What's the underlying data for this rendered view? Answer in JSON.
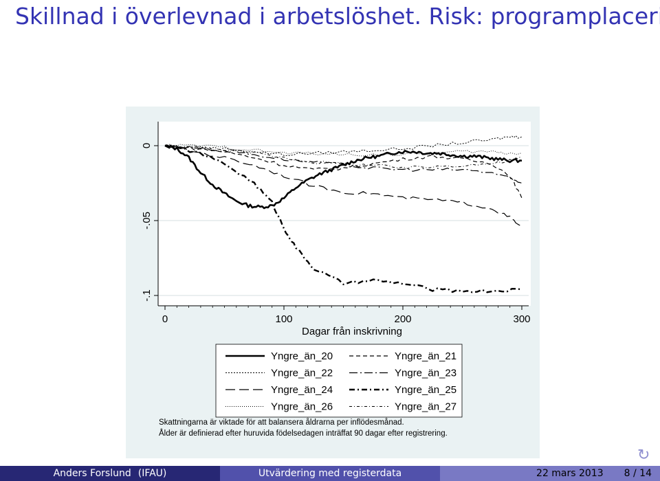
{
  "slide": {
    "title": "Skillnad i överlevnad i arbetslöshet. Risk: programplacering"
  },
  "chart_data": {
    "type": "line",
    "xlabel": "Dagar från inskrivning",
    "ylabel": "",
    "xlim": [
      0,
      300
    ],
    "ylim": [
      -0.1,
      0.01
    ],
    "xticks": [
      0,
      100,
      200,
      300
    ],
    "xtick_labels": [
      "0",
      "100",
      "200",
      "300"
    ],
    "yticks": [
      0,
      -0.05,
      -0.1
    ],
    "ytick_labels": [
      "0",
      "-.05",
      "-.1"
    ],
    "grid": "horizontal",
    "legend_position": "bottom",
    "series": [
      {
        "name": "Yngre_än_20",
        "style": "solid-thick",
        "x": [
          0,
          10,
          20,
          30,
          40,
          50,
          60,
          70,
          80,
          90,
          100,
          110,
          120,
          130,
          140,
          150,
          160,
          170,
          180,
          190,
          200,
          210,
          220,
          230,
          240,
          250,
          260,
          270,
          280,
          290,
          300
        ],
        "y": [
          0,
          -0.002,
          -0.008,
          -0.018,
          -0.026,
          -0.032,
          -0.037,
          -0.04,
          -0.041,
          -0.04,
          -0.035,
          -0.028,
          -0.023,
          -0.019,
          -0.016,
          -0.013,
          -0.01,
          -0.008,
          -0.007,
          -0.005,
          -0.004,
          -0.004,
          -0.005,
          -0.005,
          -0.006,
          -0.007,
          -0.007,
          -0.008,
          -0.009,
          -0.01,
          -0.01
        ]
      },
      {
        "name": "Yngre_än_21",
        "style": "dash",
        "x": [
          0,
          25,
          50,
          75,
          100,
          125,
          150,
          175,
          200,
          225,
          250,
          275,
          290,
          300
        ],
        "y": [
          0,
          -0.002,
          -0.004,
          -0.008,
          -0.013,
          -0.016,
          -0.015,
          -0.012,
          -0.009,
          -0.007,
          -0.009,
          -0.012,
          -0.02,
          -0.035
        ]
      },
      {
        "name": "Yngre_än_22",
        "style": "dot",
        "x": [
          0,
          25,
          50,
          75,
          100,
          125,
          150,
          175,
          200,
          225,
          250,
          275,
          290,
          300
        ],
        "y": [
          0,
          -0.001,
          -0.002,
          -0.004,
          -0.006,
          -0.005,
          -0.004,
          -0.003,
          -0.002,
          0.0,
          0.002,
          0.004,
          0.006,
          0.006
        ]
      },
      {
        "name": "Yngre_än_23",
        "style": "long-dash-dot",
        "x": [
          0,
          25,
          50,
          75,
          100,
          125,
          150,
          175,
          200,
          225,
          250,
          275,
          290,
          300
        ],
        "y": [
          0,
          -0.001,
          -0.003,
          -0.006,
          -0.009,
          -0.011,
          -0.013,
          -0.015,
          -0.016,
          -0.016,
          -0.016,
          -0.018,
          -0.022,
          -0.025
        ]
      },
      {
        "name": "Yngre_än_24",
        "style": "long-dash",
        "x": [
          0,
          25,
          50,
          75,
          100,
          125,
          150,
          175,
          200,
          225,
          250,
          275,
          290,
          300
        ],
        "y": [
          0,
          -0.004,
          -0.008,
          -0.013,
          -0.02,
          -0.027,
          -0.031,
          -0.032,
          -0.035,
          -0.036,
          -0.038,
          -0.042,
          -0.048,
          -0.055
        ]
      },
      {
        "name": "Yngre_än_25",
        "style": "dash-dot-thick",
        "x": [
          0,
          25,
          50,
          75,
          90,
          100,
          110,
          125,
          150,
          175,
          200,
          225,
          250,
          275,
          300
        ],
        "y": [
          0,
          -0.004,
          -0.012,
          -0.025,
          -0.038,
          -0.055,
          -0.068,
          -0.082,
          -0.092,
          -0.09,
          -0.092,
          -0.096,
          -0.097,
          -0.097,
          -0.096
        ]
      },
      {
        "name": "Yngre_än_26",
        "style": "dot-fine",
        "x": [
          0,
          25,
          50,
          75,
          100,
          125,
          150,
          175,
          200,
          225,
          250,
          275,
          290,
          300
        ],
        "y": [
          0,
          0.0,
          -0.001,
          -0.003,
          -0.005,
          -0.005,
          -0.006,
          -0.006,
          -0.006,
          -0.005,
          -0.004,
          -0.004,
          -0.005,
          -0.005
        ]
      },
      {
        "name": "Yngre_än_27",
        "style": "dash-dot-fine",
        "x": [
          0,
          25,
          50,
          75,
          100,
          125,
          150,
          175,
          200,
          225,
          250,
          275,
          290,
          300
        ],
        "y": [
          0,
          -0.001,
          -0.003,
          -0.005,
          -0.008,
          -0.011,
          -0.012,
          -0.013,
          -0.015,
          -0.014,
          -0.013,
          -0.012,
          -0.01,
          -0.008
        ]
      }
    ],
    "notes": [
      "Skattningarna är viktade för att balansera åldrarna per inflödesmånad.",
      "Ålder är definierad efter huruvida födelsedagen inträffat 90 dagar efter registrering."
    ]
  },
  "footer": {
    "author": "Anders Forslund",
    "institute": "(IFAU)",
    "talk_title": "Utvärdering med registerdata",
    "date": "22 mars 2013",
    "page": "8 / 14"
  }
}
